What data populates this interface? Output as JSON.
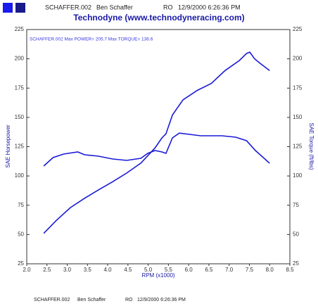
{
  "header": {
    "file": "SCHAFFER.002",
    "name": "Ben Schaffer",
    "code": "RO",
    "date": "12/9/2000 6:26:36 PM"
  },
  "footer": {
    "file": "SCHAFFER.002",
    "name": "Ben Schaffer",
    "code": "RO",
    "date": "12/9/2000 6:26:36 PM"
  },
  "chart_data": {
    "type": "line",
    "title": "Technodyne (www.technodyneracing.com)",
    "annotation": "SCHAFFER.002  Max POWER= 205.7   Max TORQUE= 136.6",
    "xlabel": "RPM (x1000)",
    "ylabel": "SAE Horsepower",
    "y2label": "SAE Torque (ft/lbs)",
    "xlim": [
      2.0,
      8.5
    ],
    "xticks": [
      {
        "value": 2,
        "label": "2.0"
      },
      2.5,
      {
        "value": 3,
        "label": "3.0"
      },
      3.5,
      {
        "value": 4,
        "label": "4.0"
      },
      4.5,
      {
        "value": 5,
        "label": "5.0"
      },
      5.5,
      {
        "value": 6,
        "label": "6.0"
      },
      6.5,
      {
        "value": 7,
        "label": "7.0"
      },
      7.5,
      {
        "value": 8,
        "label": "8.0"
      },
      8.5
    ],
    "ylim": [
      25,
      225
    ],
    "yticks": [
      25,
      50,
      75,
      100,
      125,
      150,
      175,
      200,
      225
    ],
    "y2lim": [
      25,
      225
    ],
    "y2ticks": [
      25,
      50,
      75,
      100,
      125,
      150,
      175,
      200,
      225
    ],
    "series": [
      {
        "color": "#1a1ad6",
        "axis": "y",
        "x": [
          2.42,
          2.73,
          3.08,
          3.43,
          3.77,
          4.12,
          4.47,
          4.82,
          5.17,
          5.34,
          5.44,
          5.6,
          5.86,
          6.21,
          6.56,
          6.9,
          7.25,
          7.43,
          7.51,
          7.63,
          7.77,
          8.0
        ],
        "values": [
          51,
          62,
          73,
          81,
          88,
          95,
          102.5,
          111,
          124,
          132.5,
          136,
          152,
          165,
          173,
          179,
          190,
          198.5,
          204.5,
          205.7,
          200,
          196,
          190
        ]
      },
      {
        "color": "#1a1ad6",
        "axis": "y2",
        "x": [
          2.42,
          2.65,
          2.91,
          3.26,
          3.43,
          3.77,
          4.12,
          4.47,
          4.82,
          4.99,
          5.17,
          5.34,
          5.44,
          5.6,
          5.77,
          6.3,
          6.82,
          7.16,
          7.43,
          7.65,
          8.0
        ],
        "values": [
          108.5,
          115.7,
          118.7,
          120.5,
          118.1,
          116.9,
          114.5,
          113.3,
          115.1,
          119.3,
          121.7,
          120.5,
          119.3,
          132.5,
          136.6,
          134.3,
          134.3,
          133.1,
          130.1,
          121.7,
          110.9
        ]
      }
    ]
  }
}
